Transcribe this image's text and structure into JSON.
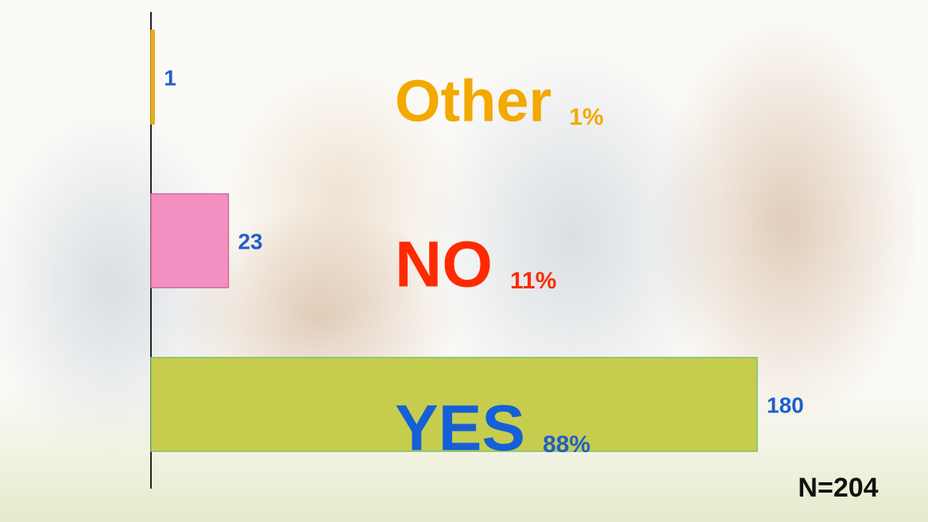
{
  "chart_data": {
    "type": "barh",
    "categories": [
      "Other",
      "NO",
      "YES"
    ],
    "values": [
      1,
      23,
      180
    ],
    "percent_labels": [
      "1%",
      "11%",
      "88%"
    ],
    "colors": [
      "#e6ad1c",
      "#f48fc2",
      "#c6cd4e"
    ],
    "label_colors": [
      "#f2a900",
      "#ff2a00",
      "#1560d6"
    ],
    "xlim": [
      0,
      180
    ],
    "note": "N=204"
  }
}
